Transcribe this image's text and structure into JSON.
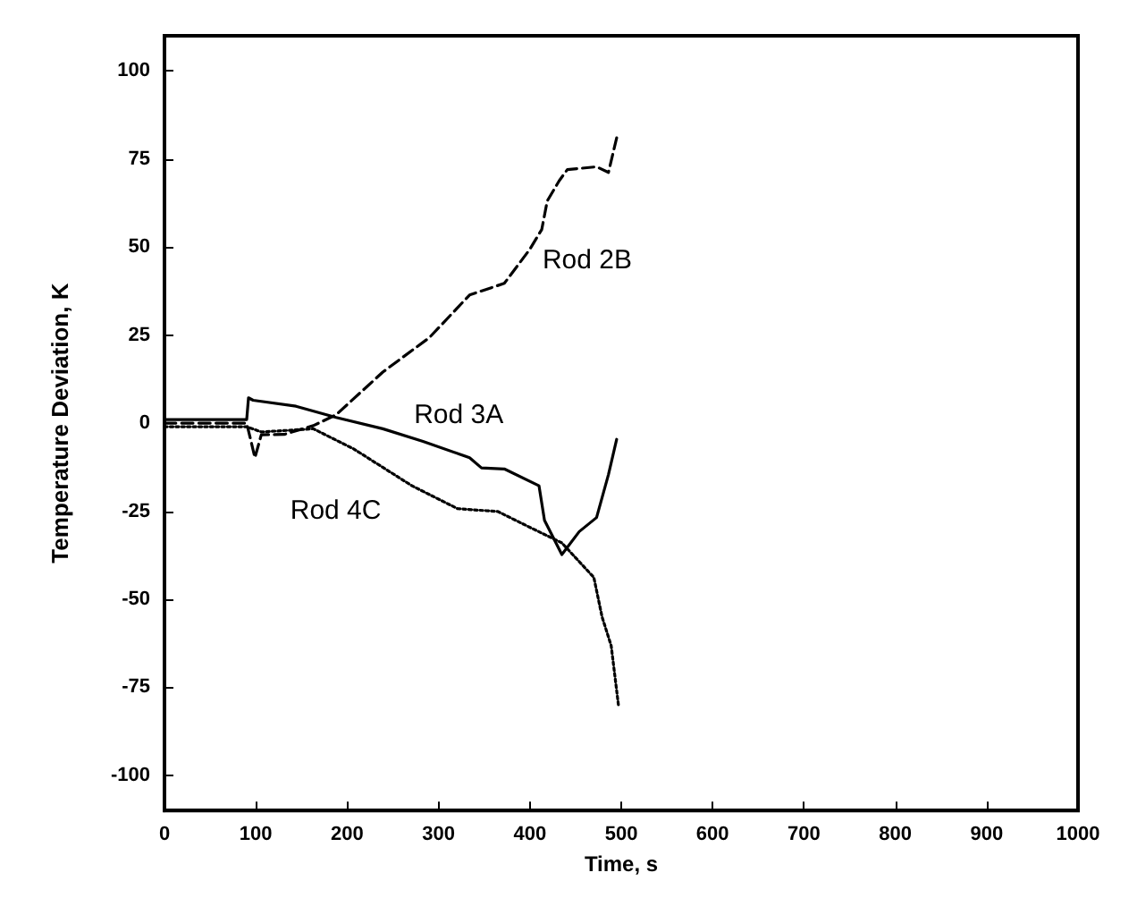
{
  "chart_data": {
    "type": "line",
    "xlabel": "Time, s",
    "ylabel": "Temperature Deviation, K",
    "xlim": [
      0,
      1000
    ],
    "xticks": [
      0,
      100,
      200,
      300,
      400,
      500,
      600,
      700,
      800,
      900,
      1000
    ],
    "ylim": [
      -110,
      110
    ],
    "yticks": [
      -100,
      -75,
      -50,
      -25,
      0,
      25,
      50,
      75,
      100
    ],
    "grid": false,
    "marker": "none",
    "series": [
      {
        "name": "Rod 2B",
        "color": "#000000",
        "line_style": "dashed",
        "x": [
          0,
          90,
          99,
          106,
          131,
          163,
          188,
          239,
          290,
          334,
          372,
          400,
          413,
          419,
          432,
          441,
          473,
          486,
          495
        ],
        "values": [
          0,
          0,
          -9.8,
          -3.3,
          -3.2,
          -0.7,
          2.4,
          14.5,
          24.3,
          36.4,
          39.7,
          49.4,
          55,
          63.1,
          68.8,
          72,
          72.8,
          71.2,
          81
        ]
      },
      {
        "name": "Rod 3A",
        "color": "#000000",
        "line_style": "solid",
        "x": [
          0,
          90,
          92,
          97,
          144,
          188,
          239,
          283,
          334,
          347,
          372,
          410,
          416,
          435,
          454,
          473,
          486,
          495
        ],
        "values": [
          1,
          1,
          7.2,
          6.5,
          4.8,
          1.6,
          -1.6,
          -5.2,
          -9.8,
          -12.7,
          -13,
          -17.8,
          -27.6,
          -37.3,
          -30.8,
          -26.8,
          -14.6,
          -4.6
        ]
      },
      {
        "name": "Rod 4C",
        "color": "#000000",
        "line_style": "dotted",
        "x": [
          0,
          90,
          106,
          163,
          207,
          271,
          321,
          365,
          397,
          435,
          470,
          479,
          489,
          497
        ],
        "values": [
          -1,
          -1,
          -2.5,
          -1.6,
          -7.3,
          -17.8,
          -24.3,
          -25.1,
          -29.2,
          -34,
          -43.8,
          -55,
          -63.2,
          -80.2
        ]
      }
    ]
  }
}
